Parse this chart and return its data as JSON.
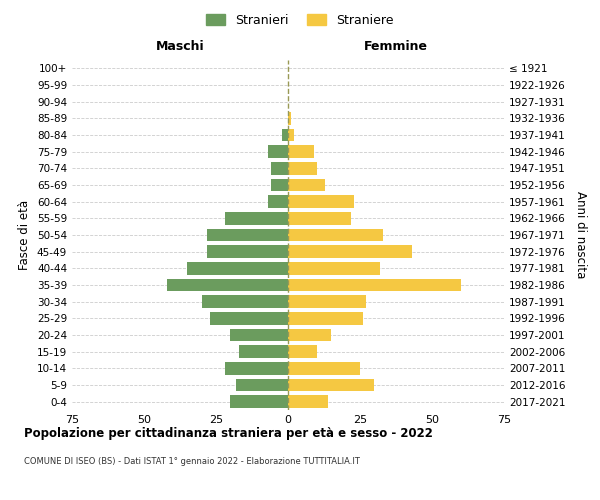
{
  "age_groups": [
    "100+",
    "95-99",
    "90-94",
    "85-89",
    "80-84",
    "75-79",
    "70-74",
    "65-69",
    "60-64",
    "55-59",
    "50-54",
    "45-49",
    "40-44",
    "35-39",
    "30-34",
    "25-29",
    "20-24",
    "15-19",
    "10-14",
    "5-9",
    "0-4"
  ],
  "birth_years": [
    "≤ 1921",
    "1922-1926",
    "1927-1931",
    "1932-1936",
    "1937-1941",
    "1942-1946",
    "1947-1951",
    "1952-1956",
    "1957-1961",
    "1962-1966",
    "1967-1971",
    "1972-1976",
    "1977-1981",
    "1982-1986",
    "1987-1991",
    "1992-1996",
    "1997-2001",
    "2002-2006",
    "2007-2011",
    "2012-2016",
    "2017-2021"
  ],
  "males": [
    0,
    0,
    0,
    0,
    2,
    7,
    6,
    6,
    7,
    22,
    28,
    28,
    35,
    42,
    30,
    27,
    20,
    17,
    22,
    18,
    20
  ],
  "females": [
    0,
    0,
    0,
    1,
    2,
    9,
    10,
    13,
    23,
    22,
    33,
    43,
    32,
    60,
    27,
    26,
    15,
    10,
    25,
    30,
    14
  ],
  "male_color": "#6b9c5e",
  "female_color": "#f5c842",
  "background_color": "#ffffff",
  "grid_color": "#cccccc",
  "title": "Popolazione per cittadinanza straniera per età e sesso - 2022",
  "subtitle": "COMUNE DI ISEO (BS) - Dati ISTAT 1° gennaio 2022 - Elaborazione TUTTITALIA.IT",
  "xlabel_left": "Maschi",
  "xlabel_right": "Femmine",
  "ylabel_left": "Fasce di età",
  "ylabel_right": "Anni di nascita",
  "legend_male": "Stranieri",
  "legend_female": "Straniere",
  "xlim": 75,
  "xticks": [
    -75,
    -50,
    -25,
    0,
    25,
    50,
    75
  ],
  "xtick_labels": [
    "75",
    "50",
    "25",
    "0",
    "25",
    "50",
    "75"
  ]
}
